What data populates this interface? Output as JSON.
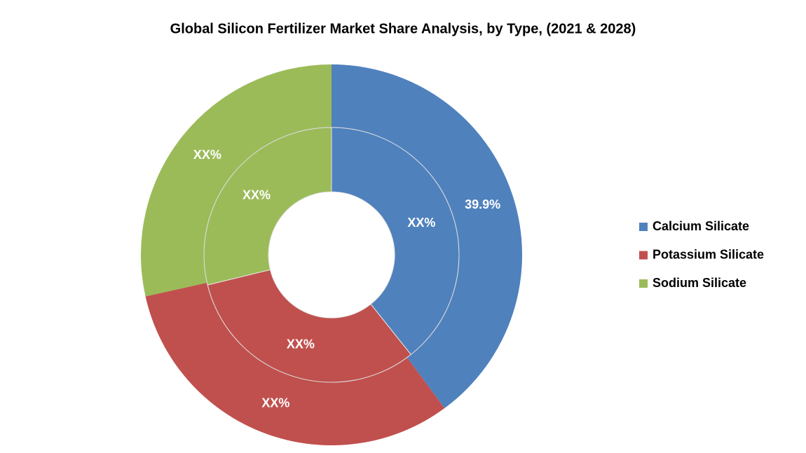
{
  "chart_data": {
    "type": "nested-donut",
    "title": "Global Silicon Fertilizer Market Share Analysis, by Type, (2021 & 2028)",
    "categories": [
      "Calcium Silicate",
      "Potassium Silicate",
      "Sodium Silicate"
    ],
    "colors": [
      "#4f81bd",
      "#c0504d",
      "#9bbb59"
    ],
    "rings": [
      {
        "values": [
          39.3,
          31.9,
          28.8
        ],
        "value_labels": [
          "XX%",
          "XX%",
          "XX%"
        ]
      },
      {
        "values": [
          39.9,
          31.6,
          28.5
        ],
        "value_labels": [
          "39.9%",
          "XX%",
          "XX%"
        ]
      }
    ],
    "legend": "right"
  }
}
